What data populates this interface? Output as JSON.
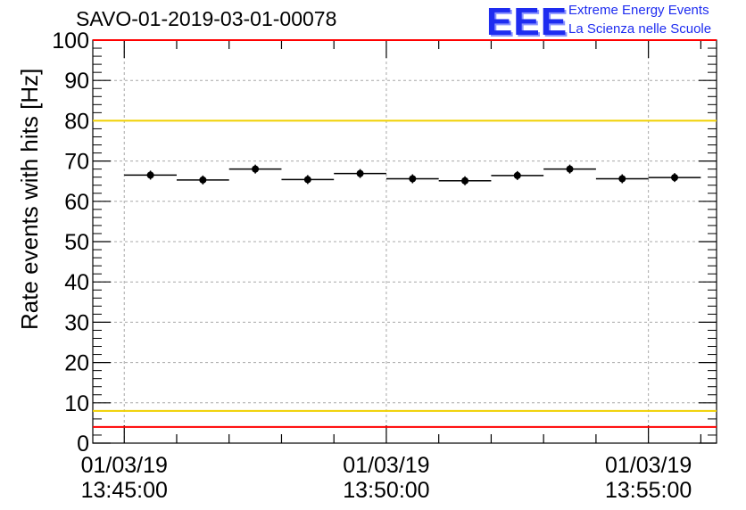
{
  "chart_data": {
    "type": "scatter",
    "title": "SAVO-01-2019-03-01-00078",
    "ylabel": "Rate events with hits [Hz]",
    "xlabel": "",
    "ylim": [
      0,
      100
    ],
    "yticks": [
      0,
      10,
      20,
      30,
      40,
      50,
      60,
      70,
      80,
      90,
      100
    ],
    "xlim_minutes": [
      -0.6,
      11.3
    ],
    "xticks": [
      {
        "minute": 0,
        "date": "01/03/19",
        "time": "13:45:00"
      },
      {
        "minute": 5,
        "date": "01/03/19",
        "time": "13:50:00"
      },
      {
        "minute": 10,
        "date": "01/03/19",
        "time": "13:55:00"
      }
    ],
    "bin_width_minutes": 1,
    "series": [
      {
        "name": "rate",
        "x": [
          0.5,
          1.5,
          2.5,
          3.5,
          4.5,
          5.5,
          6.5,
          7.5,
          8.5,
          9.5,
          10.5
        ],
        "values": [
          66.5,
          65.3,
          68.0,
          65.4,
          66.9,
          65.6,
          65.1,
          66.4,
          68.0,
          65.6,
          65.9
        ]
      }
    ],
    "reference_lines": [
      {
        "y": 100,
        "color": "#ff0000"
      },
      {
        "y": 80,
        "color": "#f0d000"
      },
      {
        "y": 8,
        "color": "#f0d000"
      },
      {
        "y": 4,
        "color": "#ff0000"
      }
    ],
    "grid": true
  },
  "logo": {
    "mark": "EEE",
    "line1": "Extreme Energy Events",
    "line2": "La Scienza nelle Scuole"
  }
}
